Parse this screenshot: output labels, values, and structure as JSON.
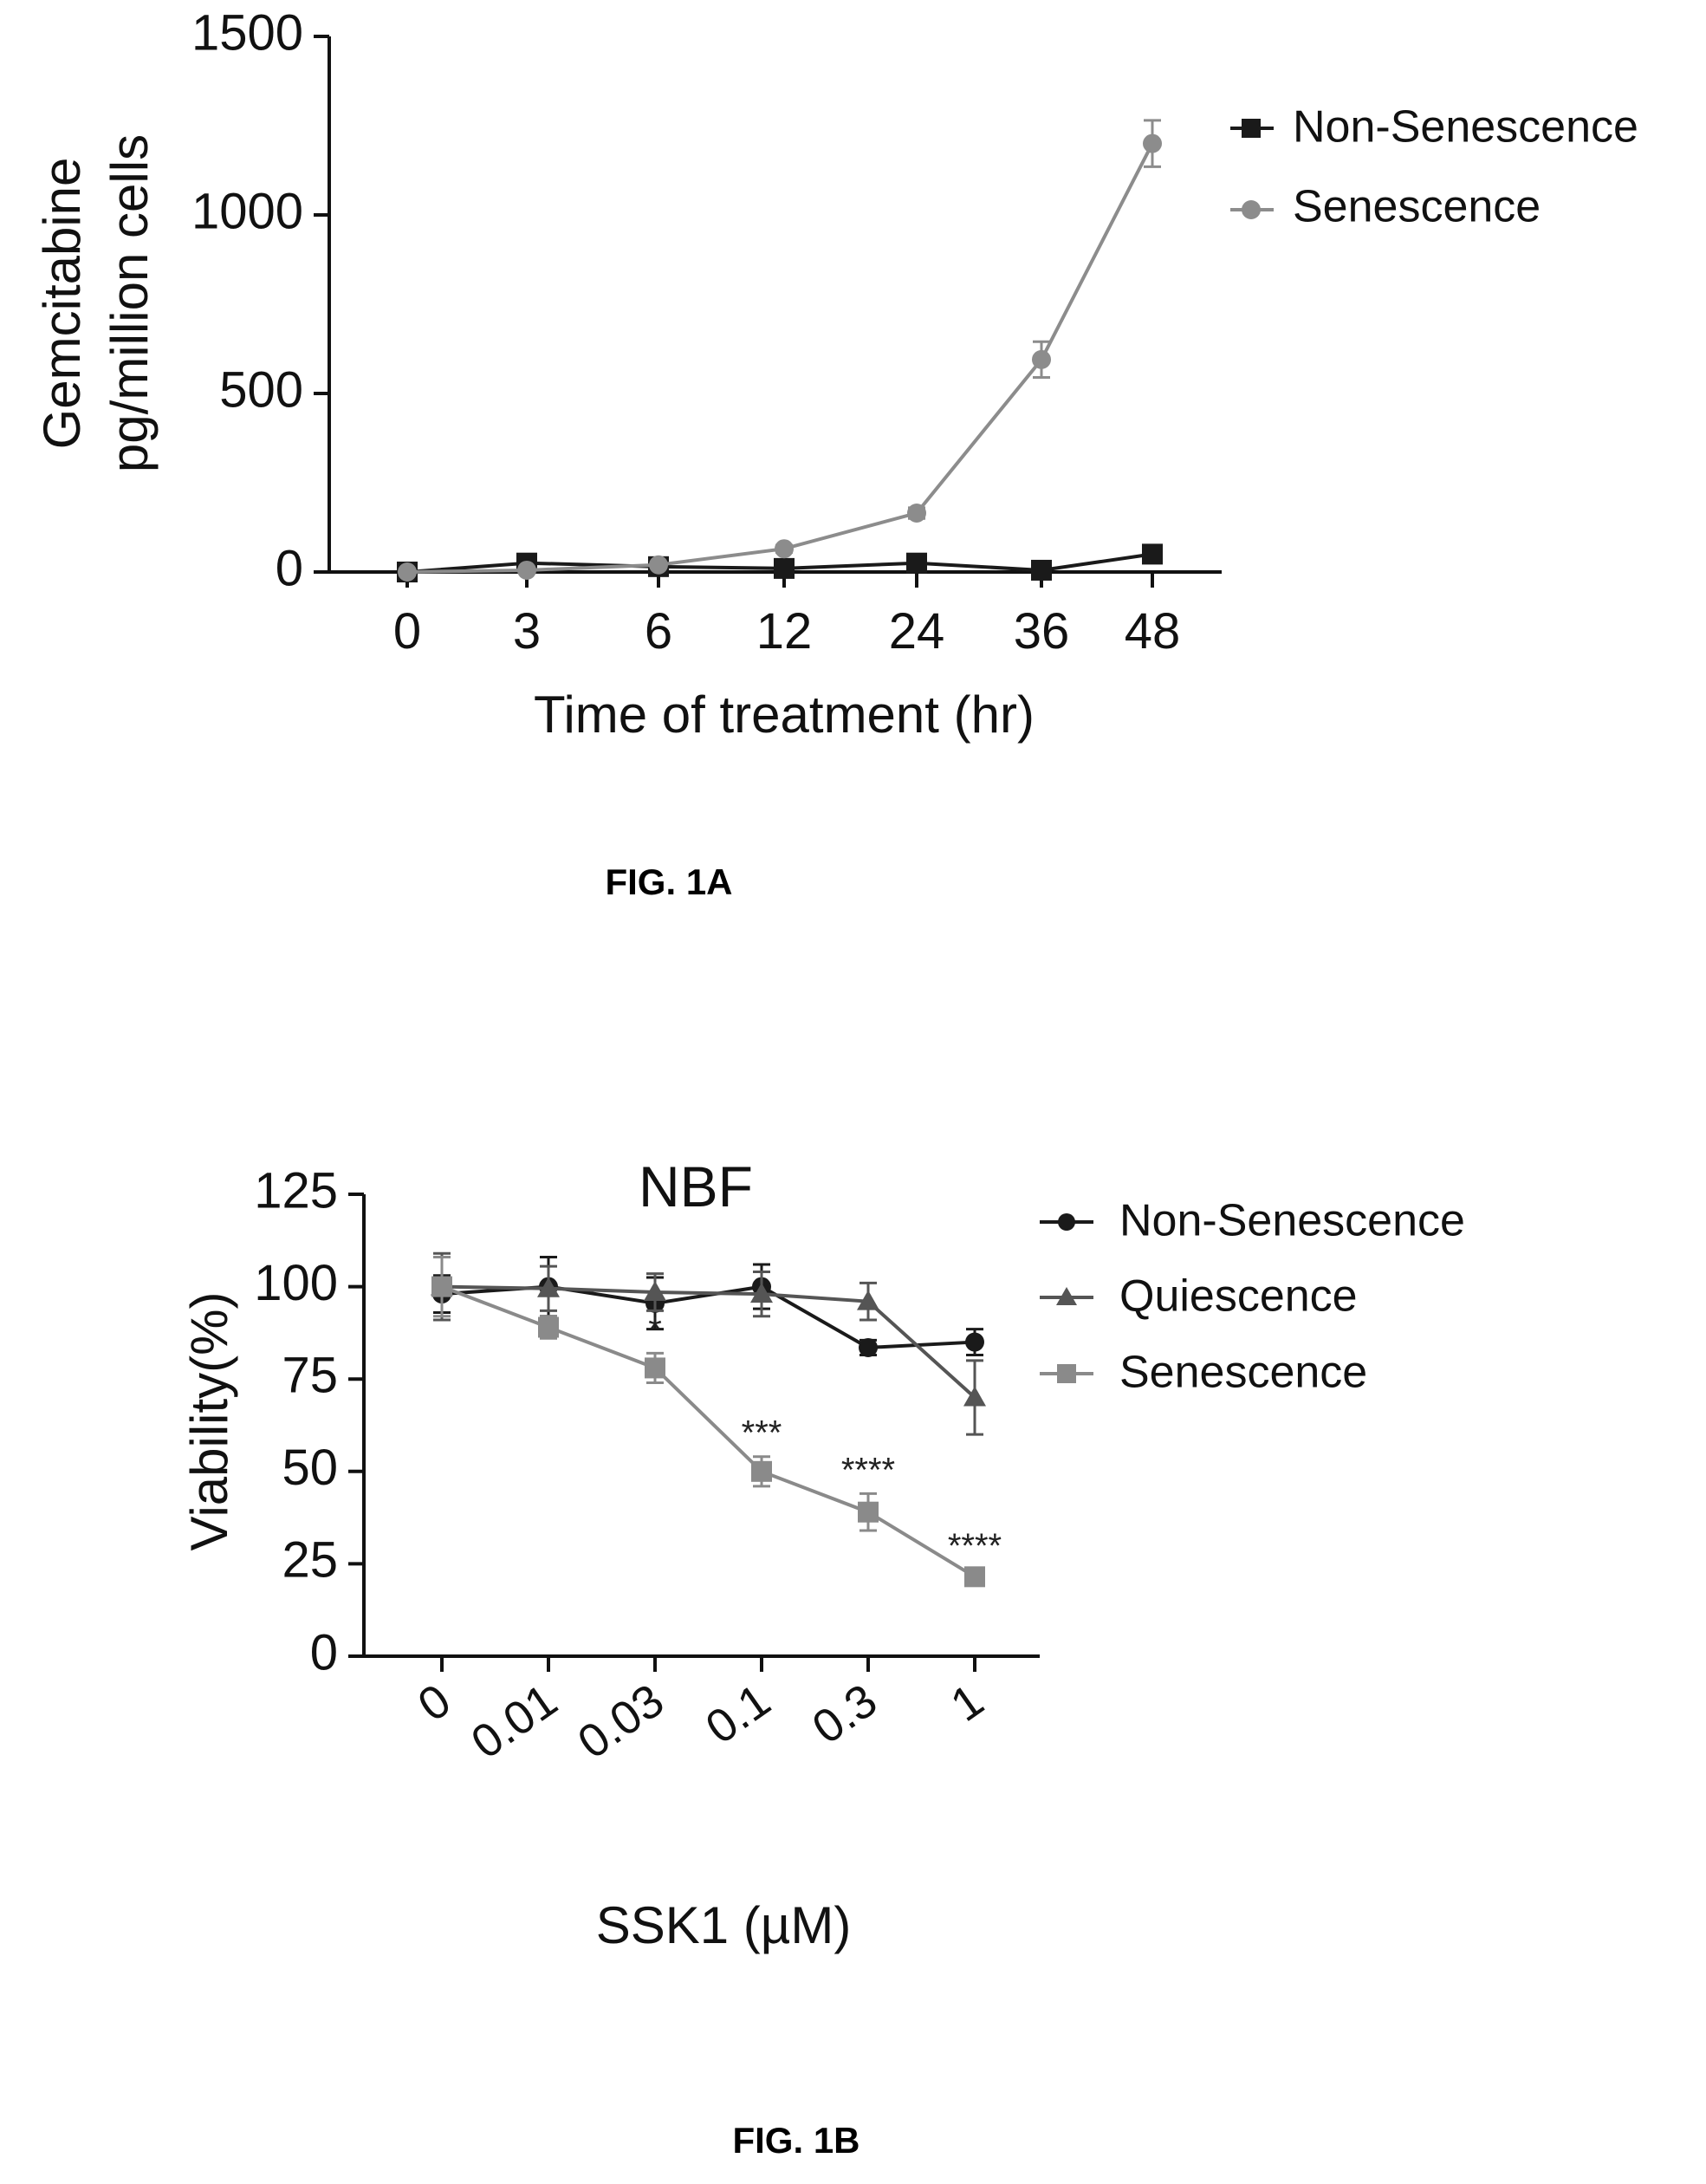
{
  "figures": {
    "caption_a": "FIG. 1A",
    "caption_b": "FIG. 1B"
  },
  "chart_data": [
    {
      "type": "line",
      "title": "",
      "xlabel": "Time of treatment (hr)",
      "ylabel_lines": [
        "Gemcitabine",
        "pg/million cells"
      ],
      "categories": [
        "0",
        "3",
        "6",
        "12",
        "24",
        "36",
        "48"
      ],
      "ylim": [
        0,
        1500
      ],
      "yticks": [
        0,
        500,
        1000,
        1500
      ],
      "legend_position": "top-right",
      "grid": false,
      "series": [
        {
          "name": "Non-Senescence",
          "color": "#1a1a1a",
          "marker": "square",
          "values": [
            0,
            25,
            15,
            10,
            25,
            5,
            50
          ],
          "errors": [
            0,
            5,
            5,
            5,
            5,
            5,
            10
          ]
        },
        {
          "name": "Senescence",
          "color": "#8c8c8c",
          "marker": "circle",
          "values": [
            0,
            5,
            20,
            65,
            165,
            595,
            1200
          ],
          "errors": [
            0,
            5,
            5,
            10,
            15,
            50,
            65
          ]
        }
      ]
    },
    {
      "type": "line",
      "title": "NBF",
      "xlabel": "SSK1 (µM)",
      "ylabel": "Viability(%)",
      "categories": [
        "0",
        "0.01",
        "0.03",
        "0.1",
        "0.3",
        "1"
      ],
      "ylim": [
        0,
        125
      ],
      "yticks": [
        0,
        25,
        50,
        75,
        100,
        125
      ],
      "legend_position": "top-right",
      "grid": false,
      "series": [
        {
          "name": "Non-Senescence",
          "color": "#1a1a1a",
          "marker": "circle",
          "values": [
            98,
            100,
            95.5,
            100,
            83.5,
            85
          ],
          "errors": [
            5,
            8,
            7,
            6,
            2,
            3.5
          ]
        },
        {
          "name": "Quiescence",
          "color": "#555555",
          "marker": "triangle",
          "values": [
            100,
            99.5,
            98.5,
            98,
            96,
            70
          ],
          "errors": [
            9,
            6,
            5,
            6,
            5,
            10
          ]
        },
        {
          "name": "Senescence",
          "color": "#8a8a8a",
          "marker": "square",
          "values": [
            100,
            89,
            78,
            50,
            39,
            21.5
          ],
          "errors": [
            8,
            3,
            4,
            4,
            5,
            2
          ]
        }
      ],
      "annotations": [
        {
          "category": "0.03",
          "text": "*"
        },
        {
          "category": "0.1",
          "text": "***"
        },
        {
          "category": "0.3",
          "text": "****"
        },
        {
          "category": "1",
          "text": "****"
        }
      ]
    }
  ]
}
